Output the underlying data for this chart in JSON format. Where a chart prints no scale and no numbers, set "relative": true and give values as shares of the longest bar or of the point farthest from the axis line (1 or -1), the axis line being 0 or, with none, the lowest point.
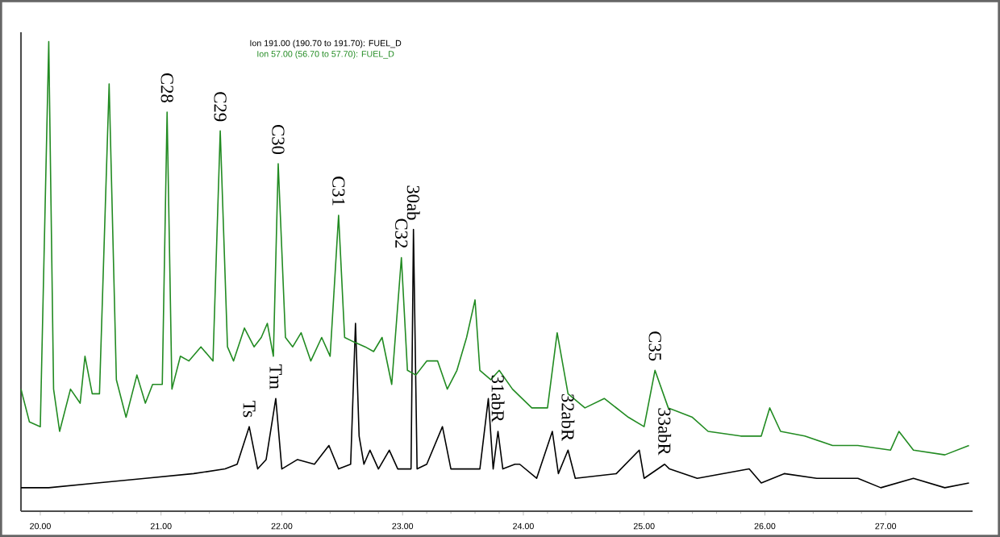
{
  "chart_data": {
    "type": "line",
    "relative": true,
    "legend": "top",
    "xlim": [
      19.84,
      27.72
    ],
    "xticks": [
      {
        "value": 20,
        "label": "20.00"
      },
      {
        "value": 21,
        "label": "21.00"
      },
      {
        "value": 22,
        "label": "22.00"
      },
      {
        "value": 23,
        "label": "23.00"
      },
      {
        "value": 24,
        "label": "24.00"
      },
      {
        "value": 25,
        "label": "25.00"
      },
      {
        "value": 26,
        "label": "26.00"
      },
      {
        "value": 27,
        "label": "27.00"
      }
    ],
    "series": [
      {
        "name": "Ion 191.00 (190.70 to 191.70): FUEL_D",
        "color": "#000000",
        "x": [
          19.84,
          20.07,
          20.47,
          20.87,
          21.27,
          21.53,
          21.63,
          21.73,
          21.8,
          21.87,
          21.95,
          22.0,
          22.13,
          22.27,
          22.39,
          22.47,
          22.57,
          22.61,
          22.64,
          22.68,
          22.73,
          22.8,
          22.89,
          22.96,
          23.07,
          23.09,
          23.12,
          23.2,
          23.33,
          23.4,
          23.53,
          23.64,
          23.71,
          23.75,
          23.79,
          23.83,
          23.93,
          23.97,
          24.11,
          24.24,
          24.29,
          24.37,
          24.43,
          24.77,
          24.96,
          25.0,
          25.17,
          25.21,
          25.44,
          25.87,
          25.97,
          26.16,
          26.43,
          26.77,
          26.96,
          27.23,
          27.49,
          27.69
        ],
        "values": [
          0.05,
          0.05,
          0.06,
          0.07,
          0.08,
          0.09,
          0.1,
          0.18,
          0.09,
          0.11,
          0.24,
          0.09,
          0.11,
          0.1,
          0.14,
          0.09,
          0.1,
          0.4,
          0.16,
          0.1,
          0.13,
          0.09,
          0.13,
          0.09,
          0.09,
          0.6,
          0.09,
          0.1,
          0.18,
          0.09,
          0.09,
          0.09,
          0.24,
          0.09,
          0.17,
          0.09,
          0.1,
          0.1,
          0.07,
          0.17,
          0.08,
          0.13,
          0.07,
          0.08,
          0.13,
          0.07,
          0.1,
          0.09,
          0.07,
          0.09,
          0.06,
          0.08,
          0.07,
          0.07,
          0.05,
          0.07,
          0.05,
          0.06
        ]
      },
      {
        "name": "Ion 57.00 (56.70 to 57.70): FUEL_D",
        "color": "#228b22",
        "x": [
          19.84,
          19.91,
          20.0,
          20.07,
          20.11,
          20.16,
          20.25,
          20.33,
          20.37,
          20.43,
          20.49,
          20.57,
          20.63,
          20.71,
          20.8,
          20.87,
          20.93,
          21.01,
          21.05,
          21.09,
          21.16,
          21.23,
          21.33,
          21.43,
          21.49,
          21.55,
          21.6,
          21.69,
          21.77,
          21.83,
          21.88,
          21.93,
          21.97,
          22.03,
          22.09,
          22.16,
          22.24,
          22.33,
          22.4,
          22.47,
          22.52,
          22.6,
          22.69,
          22.76,
          22.83,
          22.91,
          22.99,
          23.04,
          23.11,
          23.2,
          23.29,
          23.37,
          23.45,
          23.53,
          23.6,
          23.64,
          23.73,
          23.8,
          23.91,
          24.07,
          24.2,
          24.28,
          24.37,
          24.51,
          24.67,
          24.87,
          25.0,
          25.09,
          25.2,
          25.4,
          25.53,
          25.8,
          25.97,
          26.04,
          26.13,
          26.33,
          26.56,
          26.77,
          27.04,
          27.11,
          27.23,
          27.49,
          27.69
        ],
        "values": [
          0.26,
          0.19,
          0.18,
          1.0,
          0.26,
          0.17,
          0.26,
          0.23,
          0.33,
          0.25,
          0.25,
          0.91,
          0.28,
          0.2,
          0.29,
          0.23,
          0.27,
          0.27,
          0.85,
          0.26,
          0.33,
          0.32,
          0.35,
          0.32,
          0.81,
          0.35,
          0.32,
          0.39,
          0.35,
          0.37,
          0.4,
          0.33,
          0.74,
          0.37,
          0.35,
          0.38,
          0.32,
          0.37,
          0.33,
          0.63,
          0.37,
          0.36,
          0.35,
          0.34,
          0.37,
          0.27,
          0.54,
          0.3,
          0.29,
          0.32,
          0.32,
          0.26,
          0.3,
          0.37,
          0.45,
          0.3,
          0.28,
          0.3,
          0.26,
          0.22,
          0.22,
          0.38,
          0.25,
          0.22,
          0.24,
          0.2,
          0.18,
          0.3,
          0.22,
          0.2,
          0.17,
          0.16,
          0.16,
          0.22,
          0.17,
          0.16,
          0.14,
          0.14,
          0.13,
          0.17,
          0.13,
          0.12,
          0.14
        ]
      }
    ],
    "annotations": [
      {
        "text": "C28",
        "x": 21.05,
        "y": 0.85
      },
      {
        "text": "C29",
        "x": 21.49,
        "y": 0.81
      },
      {
        "text": "C30",
        "x": 21.97,
        "y": 0.74
      },
      {
        "text": "C31",
        "x": 22.47,
        "y": 0.63
      },
      {
        "text": "C32",
        "x": 22.99,
        "y": 0.54
      },
      {
        "text": "30ab",
        "x": 23.09,
        "y": 0.6
      },
      {
        "text": "C35",
        "x": 25.09,
        "y": 0.3
      },
      {
        "text": "Ts",
        "x": 21.73,
        "y": 0.18
      },
      {
        "text": "Tm",
        "x": 21.95,
        "y": 0.24
      },
      {
        "text": "31abR",
        "x": 23.79,
        "y": 0.17
      },
      {
        "text": "32abR",
        "x": 24.37,
        "y": 0.13
      },
      {
        "text": "33abR",
        "x": 25.17,
        "y": 0.1
      }
    ]
  }
}
